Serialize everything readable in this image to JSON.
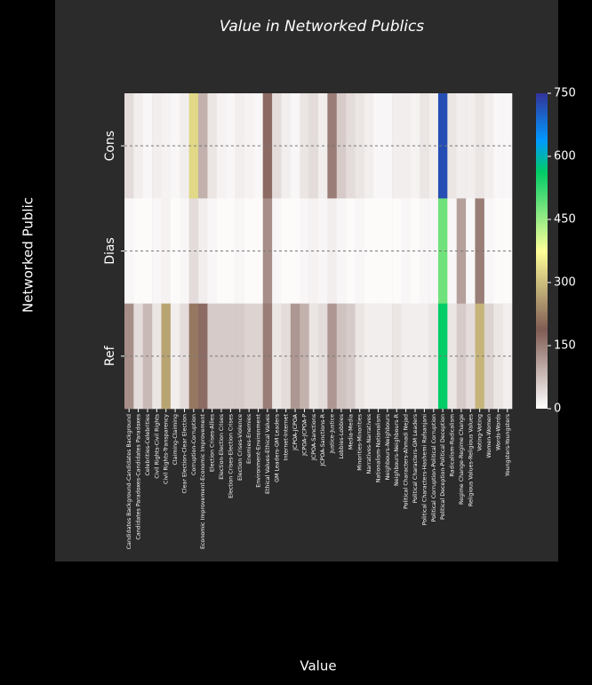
{
  "chart_data": {
    "type": "heatmap",
    "title": "Value in Networked Publics",
    "xlabel": "Value",
    "ylabel": "Networked Public",
    "x_categories": [
      "Candidates Background-Candidates Background",
      "Candidates Paradoxes-Candidates Paradoxes",
      "Celebrities-Celebrities",
      "Civil Rights-Civil Rights",
      "Civil Rights-Transparency",
      "Claiming-Claiming",
      "Clear Election-Clear Election",
      "Corruption-Corruption",
      "Economic Improvement-Economic Improvement",
      "Election Crises-Allies",
      "Election-Election Crises",
      "Election Crises-Election Crises",
      "Election Crises-Violence",
      "Enemies-Enemies",
      "Environment-Environment",
      "Ethical Values-Ethical Values",
      "GM Leaders-GM Leaders",
      "Internet-Internet",
      "JCPOA-JCPOA",
      "JCPOA-JCPOA-P",
      "JCPOA-Sanctions",
      "JCPOA-Sanctions-R",
      "Justice-Justice",
      "Lobbies-Lobbies",
      "Media-Media",
      "Minorities-Minorities",
      "Narratives-Narratives",
      "Nationalism-Nationalism",
      "Neighbours-Neighbours",
      "Neighbours-Neighbours-R",
      "Political Characters-Ahmadi Nejad",
      "Political Characters-GM Leaders",
      "Political Characters-Hashemi Rafsanjani",
      "Political Corruption-Political Corruption",
      "Political Deception-Political Deception",
      "Radicalism-Radicalism",
      "Regime Change-Regime Change",
      "Religious Values-Religious Values",
      "Voting-Voting",
      "Women-Women",
      "Words-Words",
      "Youngsters-Youngsters"
    ],
    "y_categories": [
      "Cons",
      "Dias",
      "Ref"
    ],
    "values": [
      [
        40,
        20,
        10,
        20,
        15,
        10,
        20,
        330,
        90,
        30,
        15,
        10,
        20,
        15,
        10,
        170,
        40,
        20,
        10,
        30,
        40,
        20,
        150,
        60,
        40,
        30,
        20,
        10,
        10,
        20,
        20,
        15,
        30,
        20,
        720,
        30,
        20,
        20,
        30,
        20,
        10,
        10
      ],
      [
        10,
        5,
        5,
        10,
        15,
        5,
        10,
        40,
        20,
        10,
        5,
        5,
        10,
        5,
        5,
        130,
        10,
        5,
        5,
        10,
        15,
        10,
        20,
        10,
        5,
        10,
        5,
        5,
        5,
        5,
        10,
        5,
        10,
        10,
        480,
        10,
        110,
        10,
        150,
        10,
        5,
        5
      ],
      [
        130,
        40,
        80,
        30,
        270,
        20,
        40,
        220,
        170,
        60,
        60,
        60,
        60,
        50,
        50,
        150,
        30,
        40,
        120,
        90,
        30,
        40,
        120,
        70,
        60,
        30,
        20,
        20,
        20,
        30,
        20,
        20,
        20,
        30,
        560,
        30,
        60,
        40,
        290,
        50,
        30,
        20
      ]
    ],
    "colormap": "terrain_r",
    "zlim": [
      0,
      750
    ],
    "zticks": [
      0,
      150,
      300,
      450,
      600,
      750
    ],
    "grid": true
  }
}
